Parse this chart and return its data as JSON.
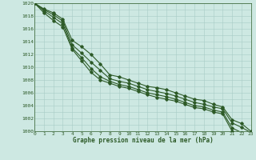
{
  "title": "Graphe pression niveau de la mer (hPa)",
  "bg_color": "#cde8e2",
  "grid_color": "#a8ccc6",
  "line_color": "#2d5a27",
  "xlim": [
    0,
    23
  ],
  "ylim": [
    1000,
    1020
  ],
  "xticks": [
    0,
    1,
    2,
    3,
    4,
    5,
    6,
    7,
    8,
    9,
    10,
    11,
    12,
    13,
    14,
    15,
    16,
    17,
    18,
    19,
    20,
    21,
    22,
    23
  ],
  "yticks": [
    1000,
    1002,
    1004,
    1006,
    1008,
    1010,
    1012,
    1014,
    1016,
    1018,
    1020
  ],
  "series": [
    [
      1020.0,
      1019.1,
      1018.5,
      1017.5,
      1014.2,
      1013.2,
      1012.0,
      1010.5,
      1008.8,
      1008.5,
      1008.0,
      1007.5,
      1007.0,
      1006.8,
      1006.5,
      1006.0,
      1005.5,
      1005.0,
      1004.8,
      1004.2,
      1003.8,
      1001.8,
      1001.2,
      1000.0
    ],
    [
      1020.0,
      1019.0,
      1018.2,
      1017.2,
      1013.5,
      1012.2,
      1010.8,
      1009.5,
      1008.2,
      1007.8,
      1007.5,
      1007.0,
      1006.5,
      1006.2,
      1005.9,
      1005.5,
      1005.0,
      1004.5,
      1004.2,
      1003.8,
      1003.5,
      1001.3,
      1000.6,
      999.8
    ],
    [
      1020.0,
      1018.8,
      1017.8,
      1016.8,
      1013.0,
      1011.5,
      1009.8,
      1008.5,
      1007.8,
      1007.3,
      1007.0,
      1006.5,
      1006.0,
      1005.7,
      1005.4,
      1005.0,
      1004.5,
      1004.0,
      1003.8,
      1003.3,
      1003.0,
      1000.5,
      999.8,
      999.2
    ],
    [
      1020.0,
      1018.5,
      1017.3,
      1016.3,
      1012.8,
      1011.0,
      1009.2,
      1008.0,
      1007.5,
      1007.0,
      1006.7,
      1006.2,
      1005.7,
      1005.3,
      1005.0,
      1004.7,
      1004.2,
      1003.7,
      1003.5,
      1003.0,
      1002.7,
      1000.0,
      999.2,
      998.8
    ]
  ],
  "marker": "D",
  "marker_size": 1.8,
  "linewidth": 0.8,
  "tick_fontsize": 4.5,
  "label_fontsize": 5.5
}
